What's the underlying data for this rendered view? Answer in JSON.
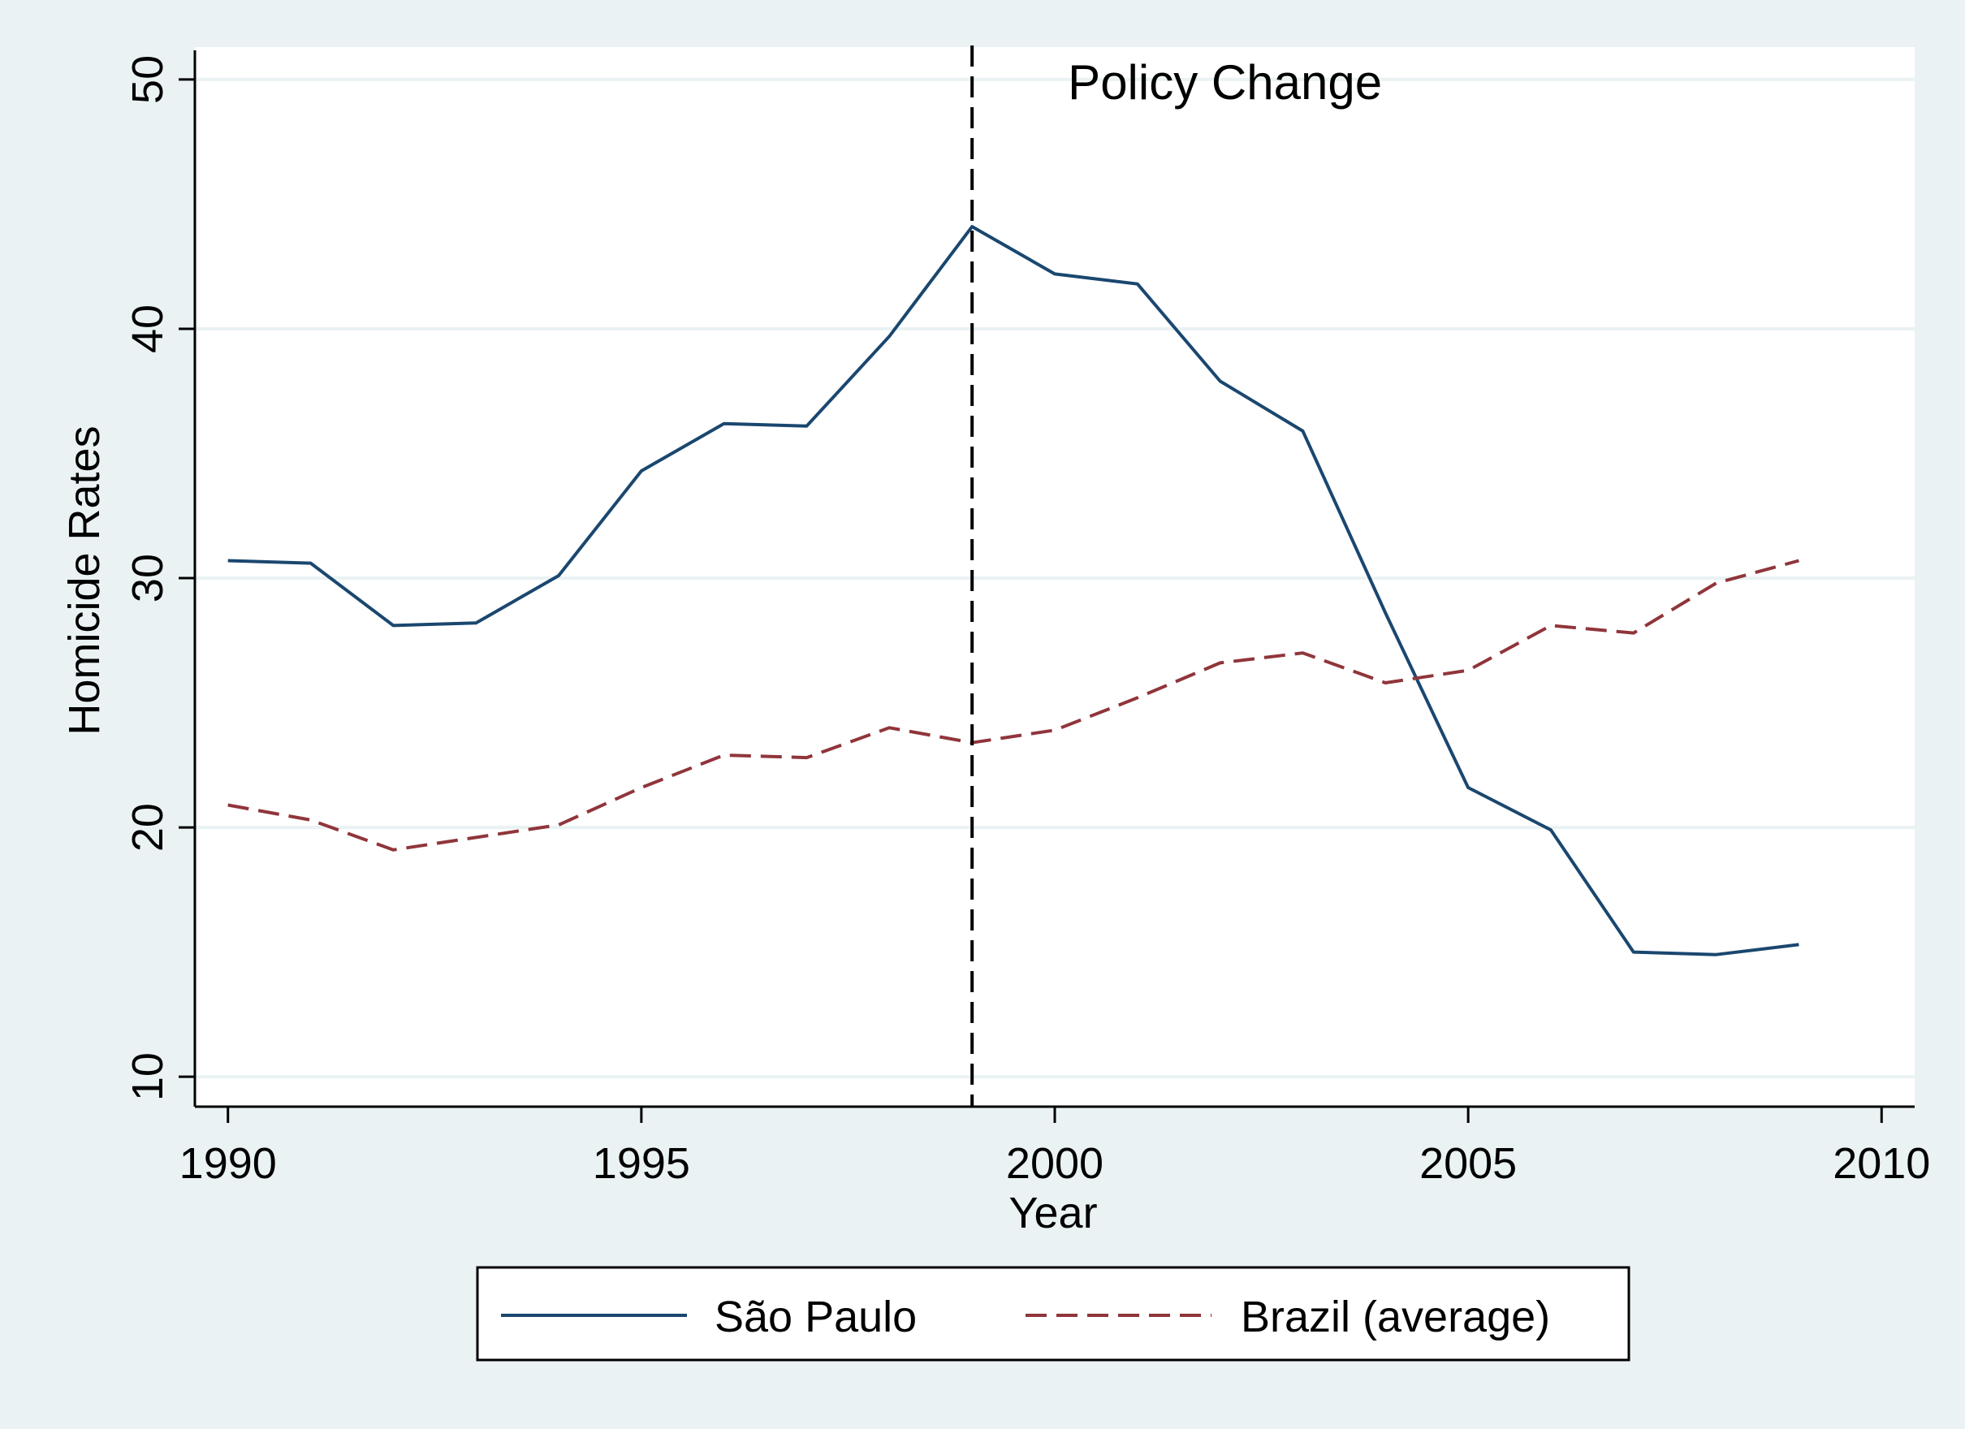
{
  "chart_data": {
    "type": "line",
    "xlabel": "Year",
    "ylabel": "Homicide Rates",
    "xlim": [
      1989.6,
      2010.4
    ],
    "ylim": [
      8.8,
      51.3
    ],
    "x_ticks": [
      "1990",
      "1995",
      "2000",
      "2005",
      "2010"
    ],
    "y_ticks": [
      "10",
      "20",
      "30",
      "40",
      "50"
    ],
    "grid": "horizontal",
    "x": [
      1990,
      1991,
      1992,
      1993,
      1994,
      1995,
      1996,
      1997,
      1998,
      1999,
      2000,
      2001,
      2002,
      2003,
      2004,
      2005,
      2006,
      2007,
      2008,
      2009
    ],
    "series": [
      {
        "name": "São Paulo",
        "color": "#1a476f",
        "style": "solid",
        "values": [
          30.7,
          30.6,
          28.1,
          28.2,
          30.1,
          34.3,
          36.2,
          36.1,
          39.7,
          44.1,
          42.2,
          41.8,
          37.9,
          35.9,
          28.6,
          21.6,
          19.9,
          15.0,
          14.9,
          15.3
        ]
      },
      {
        "name": "Brazil (average)",
        "color": "#90353b",
        "style": "dashed",
        "values": [
          20.9,
          20.3,
          19.1,
          19.6,
          20.1,
          21.6,
          22.9,
          22.8,
          24.0,
          23.4,
          23.9,
          25.2,
          26.6,
          27.0,
          25.8,
          26.3,
          28.1,
          27.8,
          29.8,
          30.7
        ]
      }
    ],
    "annotations": [
      {
        "text": "Policy Change",
        "x_line": 1999,
        "line_style": "dashed"
      }
    ],
    "legend": {
      "placement": "bottom"
    }
  }
}
